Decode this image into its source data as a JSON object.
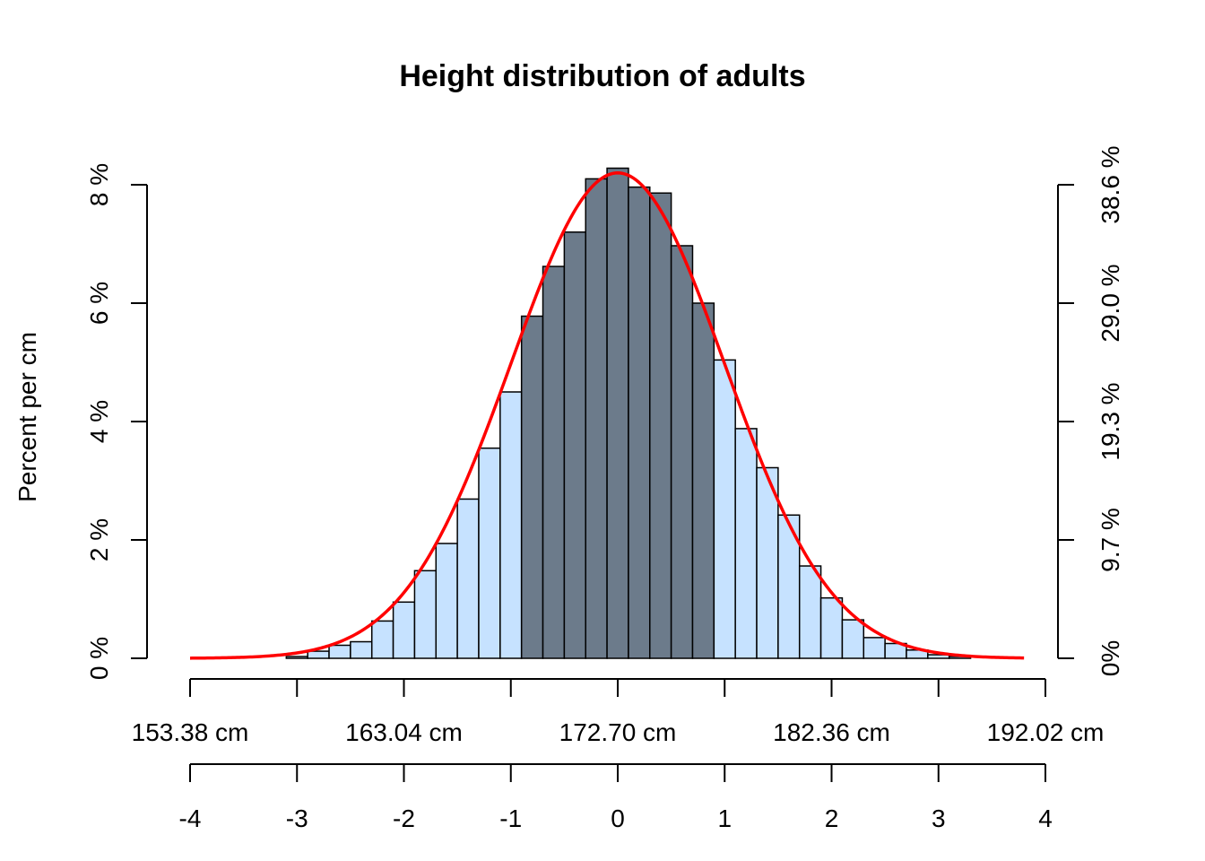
{
  "chart_data": {
    "type": "bar",
    "title": "Height distribution of adults",
    "ylabel": "Percent per cm",
    "ylim": [
      0,
      8
    ],
    "bin_edges_sd": [
      -3.1,
      -2.9,
      -2.7,
      -2.5,
      -2.3,
      -2.1,
      -1.9,
      -1.7,
      -1.5,
      -1.3,
      -1.1,
      -0.9,
      -0.7,
      -0.5,
      -0.3,
      -0.1,
      0.1,
      0.3,
      0.5,
      0.7,
      0.9,
      1.1,
      1.3,
      1.5,
      1.7,
      1.9,
      2.1,
      2.3,
      2.5,
      2.7,
      2.9,
      3.1,
      3.3
    ],
    "values": [
      0.03,
      0.12,
      0.22,
      0.28,
      0.63,
      0.95,
      1.48,
      1.94,
      2.69,
      3.55,
      4.5,
      5.78,
      6.62,
      7.2,
      8.1,
      8.28,
      7.96,
      7.86,
      6.97,
      6.0,
      5.04,
      3.88,
      3.22,
      2.42,
      1.56,
      1.02,
      0.65,
      0.35,
      0.25,
      0.14,
      0.06,
      0.03
    ],
    "highlight_range_sd": [
      -1,
      1
    ],
    "colors": {
      "bar_fill": "#c6e2ff",
      "highlight_fill": "#6c7b8b",
      "bar_stroke": "#000000",
      "curve": "#ff0000"
    },
    "curve": {
      "type": "normal_density",
      "x_range_sd": [
        -4,
        3.8
      ],
      "mean_sd": 0,
      "sd": 1,
      "peak": 8.2
    },
    "left_axis": {
      "ticks": [
        0,
        2,
        4,
        6,
        8
      ],
      "labels": [
        "0 %",
        "2 %",
        "4 %",
        "6 %",
        "8 %"
      ]
    },
    "right_axis": {
      "ticks": [
        0,
        2,
        4,
        6,
        8
      ],
      "labels": [
        "0%",
        "9.7 %",
        "19.3 %",
        "29.0 %",
        "38.6 %"
      ]
    },
    "cm_axis": {
      "ticks": [
        -4,
        -3,
        -2,
        -1,
        0,
        1,
        2,
        3,
        4
      ],
      "labels": [
        "153.38 cm",
        "",
        "163.04 cm",
        "",
        "172.70 cm",
        "",
        "182.36 cm",
        "",
        "192.02 cm"
      ]
    },
    "sd_axis": {
      "ticks": [
        -4,
        -3,
        -2,
        -1,
        0,
        1,
        2,
        3,
        4
      ],
      "labels": [
        "-4",
        "-3",
        "-2",
        "-1",
        "0",
        "1",
        "2",
        "3",
        "4"
      ]
    }
  }
}
